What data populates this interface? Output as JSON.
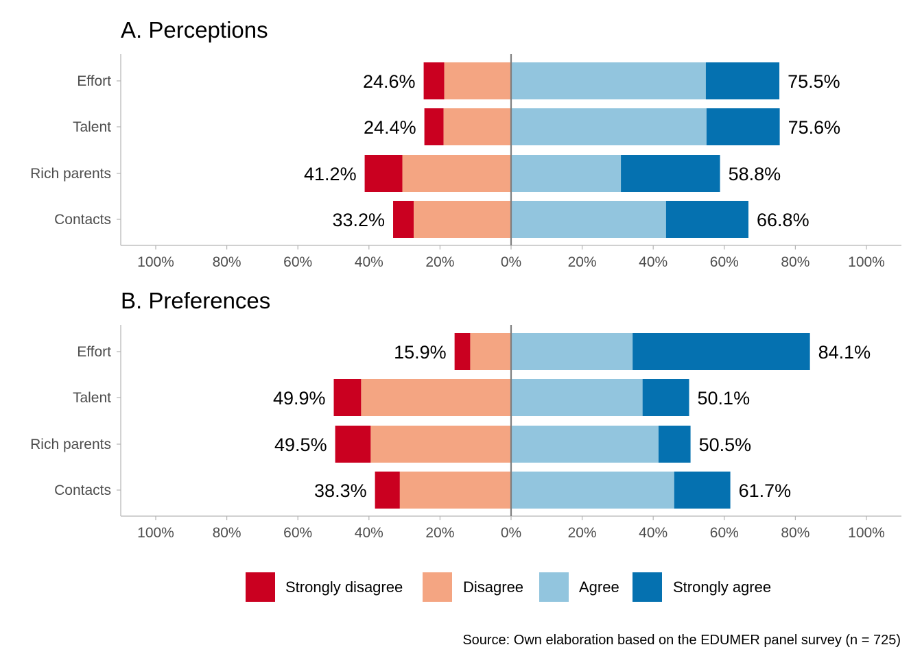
{
  "chart_data": [
    {
      "type": "bar",
      "orientation": "horizontal-diverging",
      "title": "A. Perceptions",
      "categories": [
        "Effort",
        "Talent",
        "Rich parents",
        "Contacts"
      ],
      "series": [
        {
          "name": "Strongly disagree",
          "color": "#CA0020",
          "values": [
            5.8,
            5.4,
            10.6,
            5.8
          ]
        },
        {
          "name": "Disagree",
          "color": "#F4A582",
          "values": [
            18.8,
            19.0,
            30.6,
            27.4
          ]
        },
        {
          "name": "Agree",
          "color": "#92C5DE",
          "values": [
            54.8,
            55.0,
            30.9,
            43.6
          ]
        },
        {
          "name": "Strongly agree",
          "color": "#0571B0",
          "values": [
            20.7,
            20.6,
            27.9,
            23.2
          ]
        }
      ],
      "negative_totals_labels": [
        "24.6%",
        "24.4%",
        "41.2%",
        "33.2%"
      ],
      "positive_totals_labels": [
        "75.5%",
        "75.6%",
        "58.8%",
        "66.8%"
      ],
      "xlim": [
        -100,
        100
      ],
      "xticks": [
        -100,
        -80,
        -60,
        -40,
        -20,
        0,
        20,
        40,
        60,
        80,
        100
      ],
      "xtick_labels": [
        "100%",
        "80%",
        "60%",
        "40%",
        "20%",
        "0%",
        "20%",
        "40%",
        "60%",
        "80%",
        "100%"
      ],
      "xlabel": "",
      "ylabel": "",
      "grid": false
    },
    {
      "type": "bar",
      "orientation": "horizontal-diverging",
      "title": "B. Preferences",
      "categories": [
        "Effort",
        "Talent",
        "Rich parents",
        "Contacts"
      ],
      "series": [
        {
          "name": "Strongly disagree",
          "color": "#CA0020",
          "values": [
            4.4,
            7.7,
            10.0,
            7.0
          ]
        },
        {
          "name": "Disagree",
          "color": "#F4A582",
          "values": [
            11.5,
            42.2,
            39.5,
            31.3
          ]
        },
        {
          "name": "Agree",
          "color": "#92C5DE",
          "values": [
            34.2,
            37.0,
            41.5,
            45.9
          ]
        },
        {
          "name": "Strongly agree",
          "color": "#0571B0",
          "values": [
            49.9,
            13.1,
            9.0,
            15.8
          ]
        }
      ],
      "negative_totals_labels": [
        "15.9%",
        "49.9%",
        "49.5%",
        "38.3%"
      ],
      "positive_totals_labels": [
        "84.1%",
        "50.1%",
        "50.5%",
        "61.7%"
      ],
      "xlim": [
        -100,
        100
      ],
      "xticks": [
        -100,
        -80,
        -60,
        -40,
        -20,
        0,
        20,
        40,
        60,
        80,
        100
      ],
      "xtick_labels": [
        "100%",
        "80%",
        "60%",
        "40%",
        "20%",
        "0%",
        "20%",
        "40%",
        "60%",
        "80%",
        "100%"
      ],
      "xlabel": "",
      "ylabel": "",
      "grid": false
    }
  ],
  "legend": {
    "position": "bottom",
    "items": [
      {
        "label": "Strongly disagree",
        "color": "#CA0020"
      },
      {
        "label": "Disagree",
        "color": "#F4A582"
      },
      {
        "label": "Agree",
        "color": "#92C5DE"
      },
      {
        "label": "Strongly agree",
        "color": "#0571B0"
      }
    ]
  },
  "caption": "Source: Own elaboration based on the EDUMER panel survey (n = 725)"
}
